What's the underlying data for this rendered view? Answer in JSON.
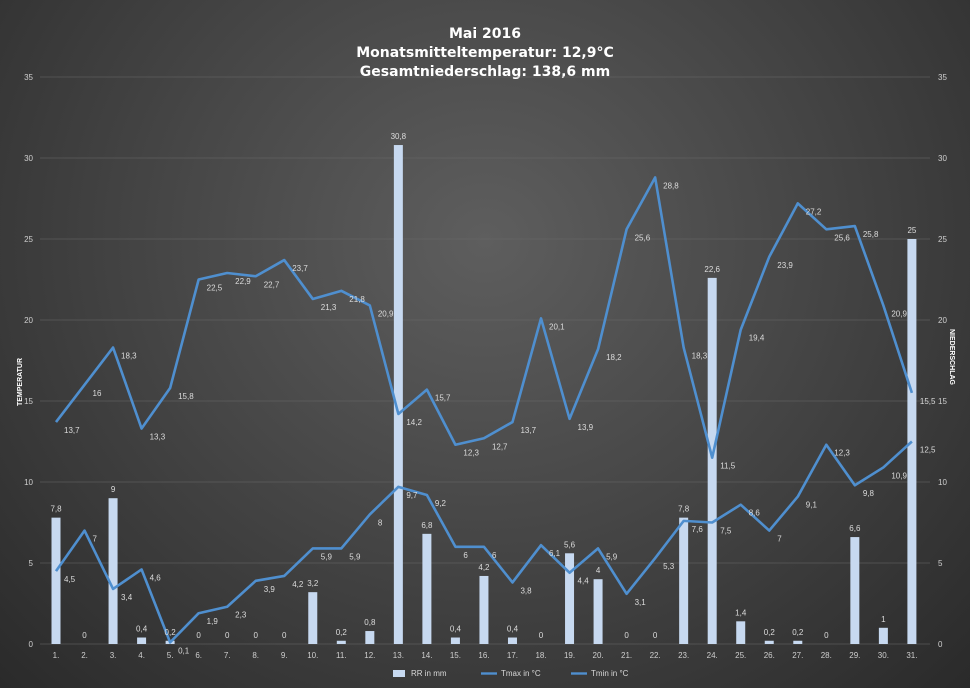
{
  "chart_data": {
    "type": "bar+line",
    "title": [
      "Mai  2016",
      "Monatsmitteltemperatur:  12,9°C",
      "Gesamtniederschlag:  138,6 mm"
    ],
    "ylabel_left": "TEMPERATUR",
    "ylabel_right": "NIEDERSCHLAG",
    "ylim": [
      0,
      35
    ],
    "yticks": [
      "0",
      "5",
      "10",
      "15",
      "20",
      "25",
      "30",
      "35"
    ],
    "grid": true,
    "legend_position": "bottom-right",
    "categories": [
      "1.",
      "2.",
      "3.",
      "4.",
      "5.",
      "6.",
      "7.",
      "8.",
      "9.",
      "10.",
      "11.",
      "12.",
      "13.",
      "14.",
      "15.",
      "16.",
      "17.",
      "18.",
      "19.",
      "20.",
      "21.",
      "22.",
      "23.",
      "24.",
      "25.",
      "26.",
      "27.",
      "28.",
      "29.",
      "30.",
      "31."
    ],
    "series": [
      {
        "name": "RR in mm",
        "kind": "bar",
        "color": "#c7d9f0",
        "values": [
          7.8,
          0,
          9,
          0.4,
          0.2,
          0,
          0,
          0,
          0,
          3.2,
          0.2,
          0.8,
          30.8,
          6.8,
          0.4,
          4.2,
          0.4,
          0,
          5.6,
          4,
          0,
          0,
          7.8,
          22.6,
          1.4,
          0.2,
          0.2,
          0,
          6.6,
          1,
          25
        ],
        "labels": [
          "7,8",
          "0",
          "9",
          "0,4",
          "0,2",
          "0",
          "0",
          "0",
          "0",
          "3,2",
          "0,2",
          "0,8",
          "30,8",
          "6,8",
          "0,4",
          "4,2",
          "0,4",
          "0",
          "5,6",
          "4",
          "0",
          "0",
          "7,8",
          "22,6",
          "1,4",
          "0,2",
          "0,2",
          "0",
          "6,6",
          "1",
          "25"
        ]
      },
      {
        "name": "Tmax in °C",
        "kind": "line",
        "color": "#4f8fcf",
        "values": [
          13.7,
          16,
          18.3,
          13.3,
          15.8,
          22.5,
          22.9,
          22.7,
          23.7,
          21.3,
          21.8,
          20.9,
          14.2,
          15.7,
          12.3,
          12.7,
          13.7,
          20.1,
          13.9,
          18.2,
          25.6,
          28.8,
          18.3,
          11.5,
          19.4,
          23.9,
          27.2,
          25.6,
          25.8,
          20.9,
          15.5
        ],
        "labels": [
          "13,7",
          "16",
          "18,3",
          "13,3",
          "15,8",
          "22,5",
          "22,9",
          "22,7",
          "23,7",
          "21,3",
          "21,8",
          "20,9",
          "14,2",
          "15,7",
          "12,3",
          "12,7",
          "13,7",
          "20,1",
          "13,9",
          "18,2",
          "25,6",
          "28,8",
          "18,3",
          "11,5",
          "19,4",
          "23,9",
          "27,2",
          "25,6",
          "25,8",
          "20,9",
          "15,5"
        ]
      },
      {
        "name": "Tmin in °C",
        "kind": "line",
        "color": "#4f8fcf",
        "values": [
          4.5,
          7,
          3.4,
          4.6,
          0.1,
          1.9,
          2.3,
          3.9,
          4.2,
          5.9,
          5.9,
          8,
          9.7,
          9.2,
          6,
          6,
          3.8,
          6.1,
          4.4,
          5.9,
          3.1,
          5.3,
          7.6,
          7.5,
          8.6,
          7,
          9.1,
          12.3,
          9.8,
          10.9,
          12.5
        ],
        "labels": [
          "4,5",
          "7",
          "3,4",
          "4,6",
          "0,1",
          "1,9",
          "2,3",
          "3,9",
          "4,2",
          "5,9",
          "5,9",
          "8",
          "9,7",
          "9,2",
          "6",
          "6",
          "3,8",
          "6,1",
          "4,4",
          "5,9",
          "3,1",
          "5,3",
          "7,6",
          "7,5",
          "8,6",
          "7",
          "9,1",
          "12,3",
          "9,8",
          "10,9",
          "12,5"
        ]
      }
    ]
  }
}
